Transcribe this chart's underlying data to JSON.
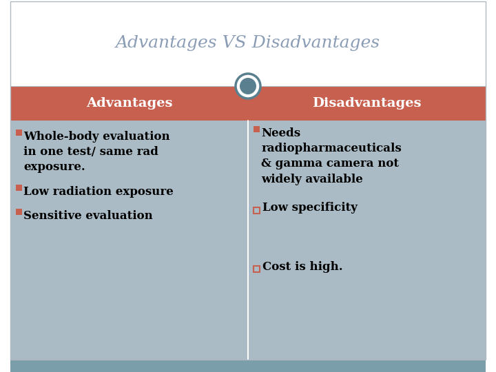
{
  "title": "Advantages VS Disadvantages",
  "title_color": "#8a9db5",
  "title_fontsize": 18,
  "bg_color": "#ffffff",
  "outer_border_color": "#b0b8c0",
  "header_color": "#c86050",
  "header_text_color": "#ffffff",
  "content_bg_color": "#aabbc5",
  "bottom_bar_color": "#7a9faa",
  "adv_header": "Advantages",
  "dis_header": "Disadvantages",
  "adv_items": [
    "■Whole-body evaluation\n   in one test/ same rad\n   exposure.",
    "■Low radiation exposure",
    "■Sensitive evaluation"
  ],
  "dis_items_line1": "■Needs\n   radiopharmaceuticals\n   & gamma camera not\n   widely available",
  "dis_items_line2": "□  Low specificity",
  "dis_items_line3": "□  Cost is high.",
  "circle_color": "#5a8090",
  "header_fontsize": 14,
  "content_fontsize": 12,
  "adv_bullet_color": "#c86050",
  "dis_bullet_color": "#c86050"
}
